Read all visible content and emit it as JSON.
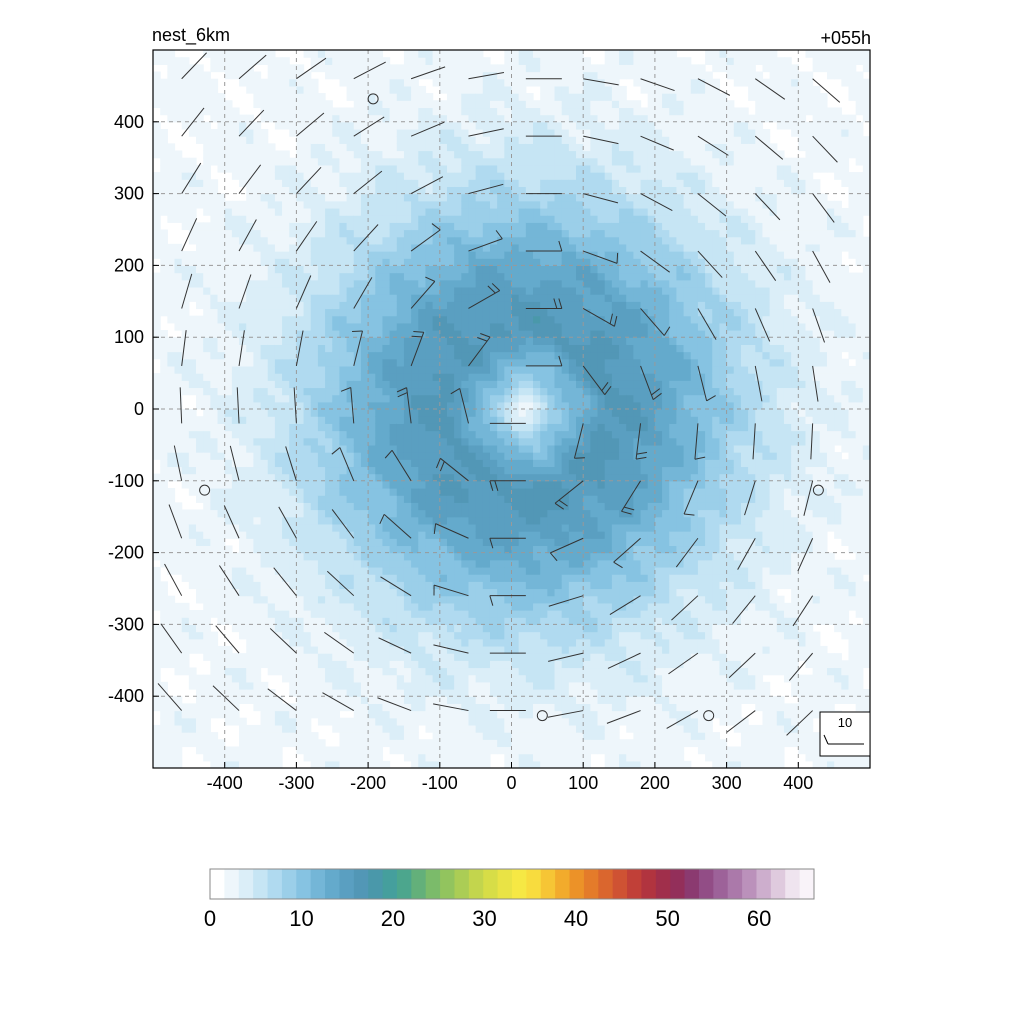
{
  "chart_data": {
    "type": "heatmap",
    "title": "nest_6km",
    "time_label": "+055h",
    "xlabel": "",
    "ylabel": "",
    "xlim": [
      -500,
      500
    ],
    "ylim": [
      -500,
      500
    ],
    "x_ticks": [
      -400,
      -300,
      -200,
      -100,
      0,
      100,
      200,
      300,
      400
    ],
    "y_ticks": [
      400,
      300,
      200,
      100,
      0,
      -100,
      -200,
      -300,
      -400
    ],
    "grid": true,
    "field": {
      "description_of_values": "wind speed contours, radially symmetric vortex",
      "center": [
        20,
        0
      ],
      "peak_value": 16,
      "peak_radius": 110,
      "eye_radius": 35,
      "background_value": 2
    },
    "colorbar": {
      "min": 0,
      "max": 66,
      "tick_values": [
        0,
        10,
        20,
        30,
        40,
        50,
        60
      ],
      "tick_labels": [
        "0",
        "10",
        "20",
        "30",
        "40",
        "50",
        "60"
      ],
      "colors": [
        "#ffffff",
        "#eef6fb",
        "#dbeef8",
        "#c6e5f4",
        "#b0daf0",
        "#9bcfe9",
        "#86c3e2",
        "#74b6d7",
        "#64aacc",
        "#5a9fc1",
        "#5297b6",
        "#4a98aa",
        "#459f9d",
        "#4ca68d",
        "#63b07a",
        "#7bbb6a",
        "#92c45e",
        "#abcd55",
        "#c3d54d",
        "#d7dd47",
        "#e9e345",
        "#f6e844",
        "#f8dc3e",
        "#f6c535",
        "#f2ab2c",
        "#ec9228",
        "#e47b2a",
        "#da662e",
        "#cf5233",
        "#c14038",
        "#b1343f",
        "#a02f4b",
        "#932f5a",
        "#8b3a70",
        "#924d86",
        "#9d6299",
        "#ab79aa",
        "#bb91bb",
        "#cdaecd",
        "#dfcade",
        "#efe4ef",
        "#f9f3f9"
      ]
    },
    "barb_reference": {
      "label": "10"
    },
    "markers": {
      "type": "calm-circle",
      "points": [
        [
          -193,
          432
        ],
        [
          -428,
          -113
        ],
        [
          428,
          -113
        ],
        [
          43,
          -427
        ],
        [
          275,
          -427
        ]
      ]
    },
    "barbs": {
      "spacing": 80,
      "note": "wind barbs on an 80 km grid, counter-clockwise circulation, strongest near center"
    }
  }
}
